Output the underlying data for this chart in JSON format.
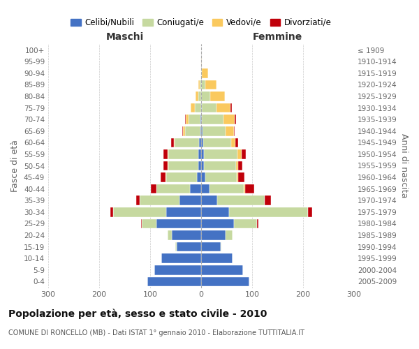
{
  "age_groups_bottom_to_top": [
    "0-4",
    "5-9",
    "10-14",
    "15-19",
    "20-24",
    "25-29",
    "30-34",
    "35-39",
    "40-44",
    "45-49",
    "50-54",
    "55-59",
    "60-64",
    "65-69",
    "70-74",
    "75-79",
    "80-84",
    "85-89",
    "90-94",
    "95-99",
    "100+"
  ],
  "birth_years_bottom_to_top": [
    "2005-2009",
    "2000-2004",
    "1995-1999",
    "1990-1994",
    "1985-1989",
    "1980-1984",
    "1975-1979",
    "1970-1974",
    "1965-1969",
    "1960-1964",
    "1955-1959",
    "1950-1954",
    "1945-1949",
    "1940-1944",
    "1935-1939",
    "1930-1934",
    "1925-1929",
    "1920-1924",
    "1915-1919",
    "1910-1914",
    "≤ 1909"
  ],
  "male_celibe": [
    105,
    92,
    78,
    48,
    58,
    88,
    68,
    42,
    22,
    8,
    6,
    6,
    4,
    2,
    2,
    0,
    0,
    0,
    0,
    0,
    0
  ],
  "male_coniugato": [
    0,
    0,
    0,
    2,
    8,
    28,
    105,
    78,
    65,
    60,
    58,
    58,
    48,
    30,
    22,
    12,
    6,
    3,
    0,
    0,
    0
  ],
  "male_vedovo": [
    0,
    0,
    0,
    0,
    0,
    0,
    0,
    0,
    1,
    2,
    2,
    2,
    2,
    3,
    6,
    8,
    5,
    2,
    0,
    0,
    0
  ],
  "male_divorziato": [
    0,
    0,
    0,
    0,
    0,
    2,
    5,
    8,
    10,
    10,
    8,
    8,
    5,
    2,
    2,
    0,
    0,
    0,
    0,
    0,
    0
  ],
  "female_celibe": [
    95,
    82,
    62,
    38,
    48,
    65,
    55,
    32,
    16,
    8,
    6,
    6,
    4,
    3,
    2,
    2,
    0,
    0,
    0,
    0,
    0
  ],
  "female_coniugato": [
    0,
    0,
    0,
    2,
    14,
    45,
    155,
    92,
    68,
    62,
    62,
    65,
    55,
    45,
    42,
    28,
    18,
    8,
    2,
    0,
    0
  ],
  "female_vedovo": [
    0,
    0,
    0,
    0,
    0,
    0,
    0,
    1,
    2,
    3,
    5,
    8,
    8,
    16,
    22,
    28,
    28,
    22,
    12,
    2,
    0
  ],
  "female_divorziato": [
    0,
    0,
    0,
    0,
    0,
    2,
    8,
    12,
    18,
    12,
    8,
    8,
    5,
    2,
    2,
    2,
    0,
    0,
    0,
    0,
    0
  ],
  "color_celibe": "#4472c4",
  "color_coniugato": "#c6d9a0",
  "color_vedovo": "#fac95e",
  "color_divorziato": "#c0000a",
  "title": "Popolazione per età, sesso e stato civile - 2010",
  "subtitle": "COMUNE DI RONCELLO (MB) - Dati ISTAT 1° gennaio 2010 - Elaborazione TUTTITALIA.IT",
  "xlabel_left": "Maschi",
  "xlabel_right": "Femmine",
  "ylabel_left": "Fasce di età",
  "ylabel_right": "Anni di nascita",
  "xlim": 300,
  "bg_color": "#ffffff",
  "grid_color": "#cccccc"
}
